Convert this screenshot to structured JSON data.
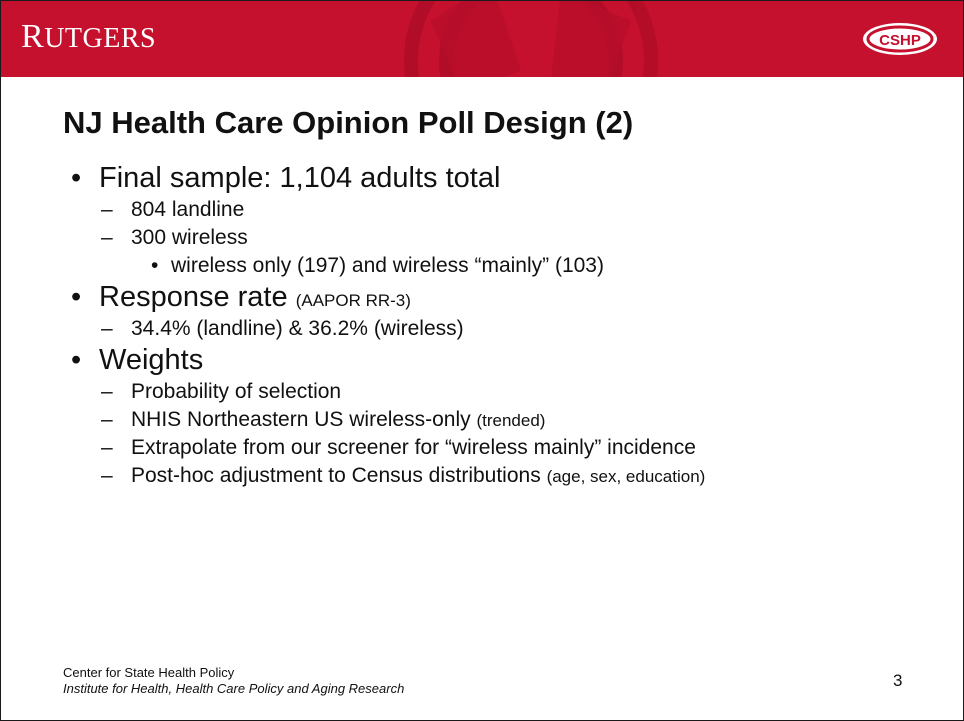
{
  "header": {
    "logo_first": "R",
    "logo_rest": "UTGERS",
    "badge_text": "CSHP"
  },
  "slide": {
    "title": "NJ Health Care Opinion Poll Design (2)",
    "bullets": [
      {
        "text": "Final sample: 1,104 adults total",
        "children": [
          {
            "text": "804 landline"
          },
          {
            "text": "300 wireless",
            "children": [
              {
                "text": "wireless only (197) and wireless “mainly” (103)"
              }
            ]
          }
        ]
      },
      {
        "text": "Response rate",
        "note": "(AAPOR RR-3)",
        "children": [
          {
            "text": "34.4% (landline) & 36.2% (wireless)"
          }
        ]
      },
      {
        "text": "Weights",
        "children": [
          {
            "text": "Probability of selection"
          },
          {
            "text": "NHIS Northeastern US wireless-only",
            "note": "(trended)"
          },
          {
            "text": "Extrapolate from our screener for “wireless mainly” incidence"
          },
          {
            "text": "Post-hoc adjustment to Census distributions",
            "note": "(age, sex, education)"
          }
        ]
      }
    ]
  },
  "footer": {
    "line1": "Center for State Health Policy",
    "line2": "Institute for Health, Health Care Policy and Aging Research",
    "page_number": "3"
  }
}
